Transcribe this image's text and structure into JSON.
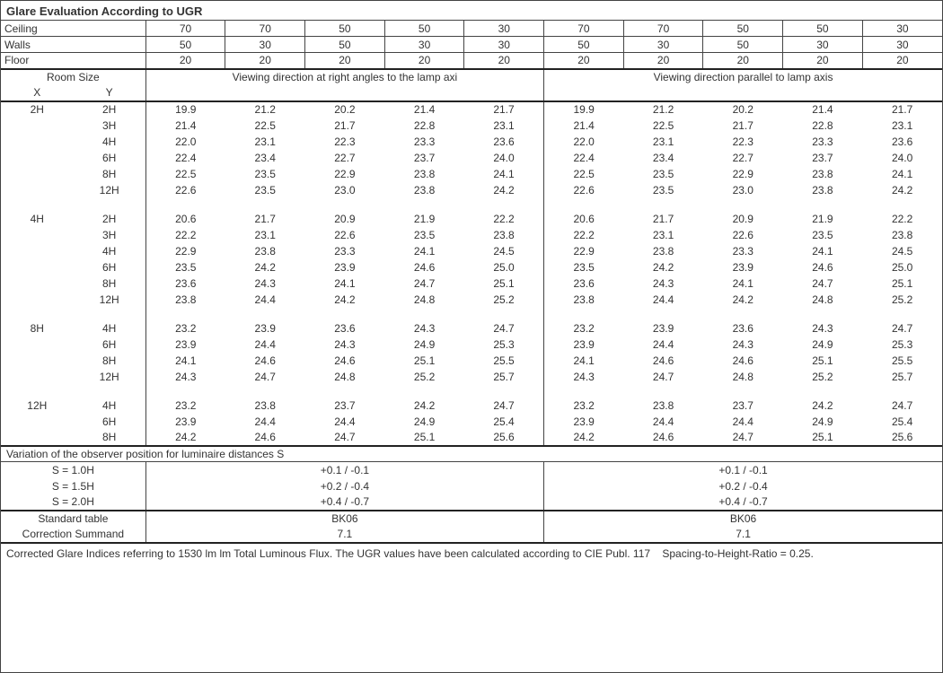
{
  "title": "Glare Evaluation According to UGR",
  "surface_labels": {
    "ceiling": "Ceiling",
    "walls": "Walls",
    "floor": "Floor"
  },
  "ceiling": [
    70,
    70,
    50,
    50,
    30,
    70,
    70,
    50,
    50,
    30
  ],
  "walls": [
    50,
    30,
    50,
    30,
    30,
    50,
    30,
    50,
    30,
    30
  ],
  "floor": [
    20,
    20,
    20,
    20,
    20,
    20,
    20,
    20,
    20,
    20
  ],
  "room_size_label": "Room Size",
  "x_label": "X",
  "y_label": "Y",
  "dir_label_a": "Viewing direction at right angles to the lamp axi",
  "dir_label_b": "Viewing direction parallel to lamp axis",
  "groups": [
    {
      "x": "2H",
      "rows": [
        {
          "y": "2H",
          "v": [
            "19.9",
            "21.2",
            "20.2",
            "21.4",
            "21.7",
            "19.9",
            "21.2",
            "20.2",
            "21.4",
            "21.7"
          ]
        },
        {
          "y": "3H",
          "v": [
            "21.4",
            "22.5",
            "21.7",
            "22.8",
            "23.1",
            "21.4",
            "22.5",
            "21.7",
            "22.8",
            "23.1"
          ]
        },
        {
          "y": "4H",
          "v": [
            "22.0",
            "23.1",
            "22.3",
            "23.3",
            "23.6",
            "22.0",
            "23.1",
            "22.3",
            "23.3",
            "23.6"
          ]
        },
        {
          "y": "6H",
          "v": [
            "22.4",
            "23.4",
            "22.7",
            "23.7",
            "24.0",
            "22.4",
            "23.4",
            "22.7",
            "23.7",
            "24.0"
          ]
        },
        {
          "y": "8H",
          "v": [
            "22.5",
            "23.5",
            "22.9",
            "23.8",
            "24.1",
            "22.5",
            "23.5",
            "22.9",
            "23.8",
            "24.1"
          ]
        },
        {
          "y": "12H",
          "v": [
            "22.6",
            "23.5",
            "23.0",
            "23.8",
            "24.2",
            "22.6",
            "23.5",
            "23.0",
            "23.8",
            "24.2"
          ]
        }
      ]
    },
    {
      "x": "4H",
      "rows": [
        {
          "y": "2H",
          "v": [
            "20.6",
            "21.7",
            "20.9",
            "21.9",
            "22.2",
            "20.6",
            "21.7",
            "20.9",
            "21.9",
            "22.2"
          ]
        },
        {
          "y": "3H",
          "v": [
            "22.2",
            "23.1",
            "22.6",
            "23.5",
            "23.8",
            "22.2",
            "23.1",
            "22.6",
            "23.5",
            "23.8"
          ]
        },
        {
          "y": "4H",
          "v": [
            "22.9",
            "23.8",
            "23.3",
            "24.1",
            "24.5",
            "22.9",
            "23.8",
            "23.3",
            "24.1",
            "24.5"
          ]
        },
        {
          "y": "6H",
          "v": [
            "23.5",
            "24.2",
            "23.9",
            "24.6",
            "25.0",
            "23.5",
            "24.2",
            "23.9",
            "24.6",
            "25.0"
          ]
        },
        {
          "y": "8H",
          "v": [
            "23.6",
            "24.3",
            "24.1",
            "24.7",
            "25.1",
            "23.6",
            "24.3",
            "24.1",
            "24.7",
            "25.1"
          ]
        },
        {
          "y": "12H",
          "v": [
            "23.8",
            "24.4",
            "24.2",
            "24.8",
            "25.2",
            "23.8",
            "24.4",
            "24.2",
            "24.8",
            "25.2"
          ]
        }
      ]
    },
    {
      "x": "8H",
      "rows": [
        {
          "y": "4H",
          "v": [
            "23.2",
            "23.9",
            "23.6",
            "24.3",
            "24.7",
            "23.2",
            "23.9",
            "23.6",
            "24.3",
            "24.7"
          ]
        },
        {
          "y": "6H",
          "v": [
            "23.9",
            "24.4",
            "24.3",
            "24.9",
            "25.3",
            "23.9",
            "24.4",
            "24.3",
            "24.9",
            "25.3"
          ]
        },
        {
          "y": "8H",
          "v": [
            "24.1",
            "24.6",
            "24.6",
            "25.1",
            "25.5",
            "24.1",
            "24.6",
            "24.6",
            "25.1",
            "25.5"
          ]
        },
        {
          "y": "12H",
          "v": [
            "24.3",
            "24.7",
            "24.8",
            "25.2",
            "25.7",
            "24.3",
            "24.7",
            "24.8",
            "25.2",
            "25.7"
          ]
        }
      ]
    },
    {
      "x": "12H",
      "rows": [
        {
          "y": "4H",
          "v": [
            "23.2",
            "23.8",
            "23.7",
            "24.2",
            "24.7",
            "23.2",
            "23.8",
            "23.7",
            "24.2",
            "24.7"
          ]
        },
        {
          "y": "6H",
          "v": [
            "23.9",
            "24.4",
            "24.4",
            "24.9",
            "25.4",
            "23.9",
            "24.4",
            "24.4",
            "24.9",
            "25.4"
          ]
        },
        {
          "y": "8H",
          "v": [
            "24.2",
            "24.6",
            "24.7",
            "25.1",
            "25.6",
            "24.2",
            "24.6",
            "24.7",
            "25.1",
            "25.6"
          ]
        }
      ]
    }
  ],
  "variation_label": "Variation of the observer position for luminaire distances S",
  "variation": [
    {
      "s": "S = 1.0H",
      "a": "+0.1 / -0.1",
      "b": "+0.1 / -0.1"
    },
    {
      "s": "S = 1.5H",
      "a": "+0.2 / -0.4",
      "b": "+0.2 / -0.4"
    },
    {
      "s": "S = 2.0H",
      "a": "+0.4 / -0.7",
      "b": "+0.4 / -0.7"
    }
  ],
  "std_table_label": "Standard table",
  "std_table_a": "BK06",
  "std_table_b": "BK06",
  "corr_label": "Correction Summand",
  "corr_a": "7.1",
  "corr_b": "7.1",
  "footer_a": "Corrected Glare Indices referring to 1530 lm lm Total Luminous Flux. The UGR values have been calculated according to CIE Publ. 117",
  "footer_b": "Spacing-to-Height-Ratio = 0.25."
}
